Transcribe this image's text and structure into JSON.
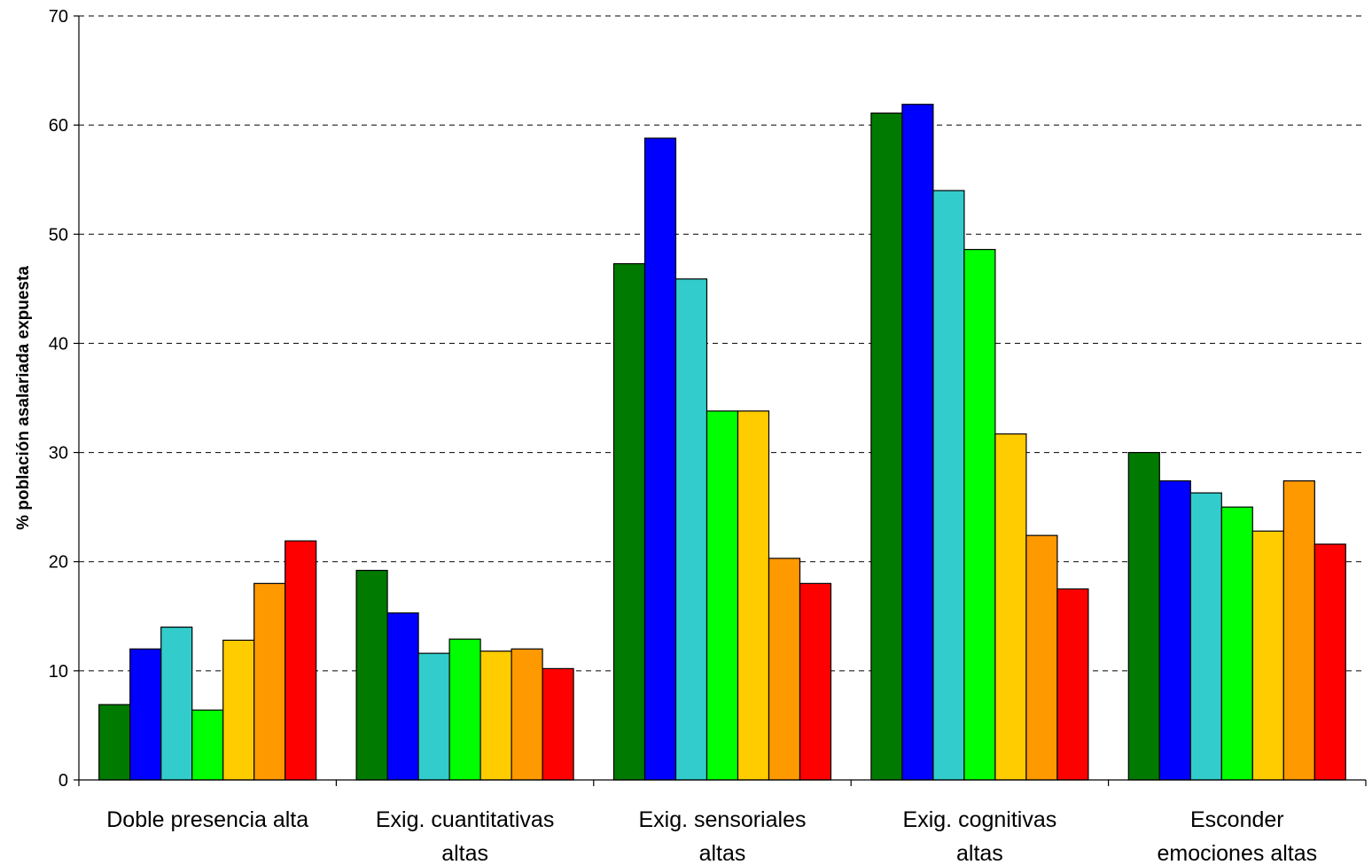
{
  "chart_data": {
    "type": "bar",
    "title": "",
    "xlabel": "",
    "ylabel": "% población asalariada expuesta",
    "ylim": [
      0,
      70
    ],
    "yticks": [
      0,
      10,
      20,
      30,
      40,
      50,
      60,
      70
    ],
    "grid": true,
    "legend": "none",
    "categories": [
      [
        "Doble presencia alta"
      ],
      [
        "Exig. cuantitativas",
        "altas"
      ],
      [
        "Exig. sensoriales",
        "altas"
      ],
      [
        "Exig. cognitivas",
        "altas"
      ],
      [
        "Esconder",
        "emociones altas"
      ]
    ],
    "series": [
      {
        "color": "#007a00",
        "values": [
          6.9,
          19.2,
          47.3,
          61.1,
          30.0
        ]
      },
      {
        "color": "#0000ff",
        "values": [
          12.0,
          15.3,
          58.8,
          61.9,
          27.4
        ]
      },
      {
        "color": "#33cccc",
        "values": [
          14.0,
          11.6,
          45.9,
          54.0,
          26.3
        ]
      },
      {
        "color": "#00ff00",
        "values": [
          6.4,
          12.9,
          33.8,
          48.6,
          25.0
        ]
      },
      {
        "color": "#ffcc00",
        "values": [
          12.8,
          11.8,
          33.8,
          31.7,
          22.8
        ]
      },
      {
        "color": "#ff9900",
        "values": [
          18.0,
          12.0,
          20.3,
          22.4,
          27.4
        ]
      },
      {
        "color": "#ff0000",
        "values": [
          21.9,
          10.2,
          18.0,
          17.5,
          21.6
        ]
      }
    ]
  }
}
